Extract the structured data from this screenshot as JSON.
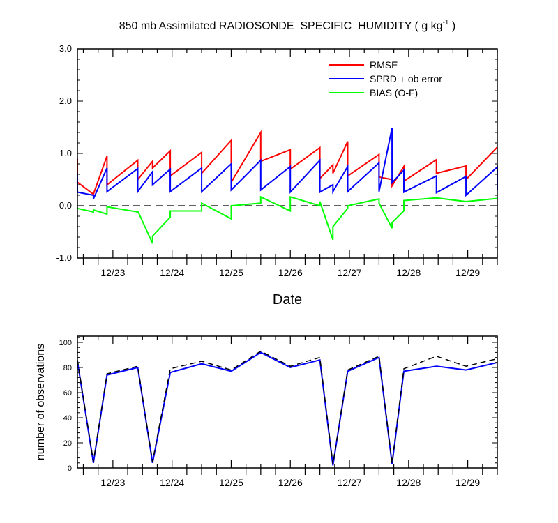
{
  "figure": {
    "title_main": "850 mb Assimilated RADIOSONDE_SPECIFIC_HUMIDITY ( g kg",
    "title_sup": "-1",
    "title_end": " )"
  },
  "chart_data": [
    {
      "type": "line",
      "xlabel": "Date",
      "ylabel": "",
      "xlim": [
        22.4,
        29.5
      ],
      "ylim": [
        -1.0,
        3.0
      ],
      "yticks": [
        -1.0,
        0.0,
        1.0,
        2.0,
        3.0
      ],
      "ytick_labels": [
        "-1.0",
        "0.0",
        "1.0",
        "2.0",
        "3.0"
      ],
      "xticks": [
        23,
        24,
        25,
        26,
        27,
        28,
        29
      ],
      "xtick_labels": [
        "12/23",
        "12/24",
        "12/25",
        "12/26",
        "12/27",
        "12/28",
        "12/29"
      ],
      "zero_line": true,
      "legend": {
        "position": "top-right"
      },
      "series": [
        {
          "name": "RMSE",
          "color": "#ff0000",
          "points": [
            [
              22.4,
              0.9
            ],
            [
              22.4,
              0.45
            ],
            [
              22.67,
              0.22
            ],
            [
              22.67,
              0.22
            ],
            [
              22.9,
              0.95
            ],
            [
              22.9,
              0.4
            ],
            [
              23.42,
              0.87
            ],
            [
              23.42,
              0.5
            ],
            [
              23.67,
              0.85
            ],
            [
              23.67,
              0.72
            ],
            [
              23.97,
              1.05
            ],
            [
              23.97,
              0.57
            ],
            [
              24.5,
              1.02
            ],
            [
              24.5,
              0.62
            ],
            [
              25.0,
              1.25
            ],
            [
              25.0,
              0.45
            ],
            [
              25.5,
              1.4
            ],
            [
              25.5,
              0.85
            ],
            [
              26.0,
              1.07
            ],
            [
              26.0,
              0.7
            ],
            [
              26.5,
              1.11
            ],
            [
              26.5,
              0.52
            ],
            [
              26.72,
              0.78
            ],
            [
              26.72,
              0.62
            ],
            [
              26.97,
              1.23
            ],
            [
              26.97,
              0.57
            ],
            [
              27.5,
              0.98
            ],
            [
              27.5,
              0.55
            ],
            [
              27.72,
              0.5
            ],
            [
              27.72,
              0.38
            ],
            [
              27.92,
              0.75
            ],
            [
              27.92,
              0.47
            ],
            [
              28.47,
              0.88
            ],
            [
              28.47,
              0.62
            ],
            [
              28.97,
              0.76
            ],
            [
              28.97,
              0.5
            ],
            [
              29.5,
              1.12
            ]
          ]
        },
        {
          "name": "SPRD + ob error",
          "color": "#0000ff",
          "points": [
            [
              22.4,
              0.62
            ],
            [
              22.4,
              0.26
            ],
            [
              22.67,
              0.2
            ],
            [
              22.67,
              0.13
            ],
            [
              22.9,
              0.72
            ],
            [
              22.9,
              0.27
            ],
            [
              23.42,
              0.71
            ],
            [
              23.42,
              0.27
            ],
            [
              23.67,
              0.65
            ],
            [
              23.67,
              0.4
            ],
            [
              23.97,
              0.7
            ],
            [
              23.97,
              0.27
            ],
            [
              24.5,
              0.72
            ],
            [
              24.5,
              0.27
            ],
            [
              25.0,
              0.8
            ],
            [
              25.0,
              0.3
            ],
            [
              25.5,
              0.87
            ],
            [
              25.5,
              0.3
            ],
            [
              26.0,
              0.75
            ],
            [
              26.0,
              0.26
            ],
            [
              26.5,
              0.87
            ],
            [
              26.5,
              0.26
            ],
            [
              26.72,
              0.4
            ],
            [
              26.72,
              0.27
            ],
            [
              26.97,
              0.75
            ],
            [
              26.97,
              0.27
            ],
            [
              27.5,
              0.82
            ],
            [
              27.5,
              0.27
            ],
            [
              27.72,
              1.49
            ],
            [
              27.72,
              0.44
            ],
            [
              27.92,
              0.68
            ],
            [
              27.92,
              0.26
            ],
            [
              28.47,
              0.57
            ],
            [
              28.47,
              0.25
            ],
            [
              28.97,
              0.56
            ],
            [
              28.97,
              0.2
            ],
            [
              29.5,
              0.74
            ],
            [
              29.5,
              0.3
            ]
          ]
        },
        {
          "name": "BIAS (O-F)",
          "color": "#00ff00",
          "points": [
            [
              22.4,
              -0.03
            ],
            [
              22.4,
              -0.05
            ],
            [
              22.67,
              -0.12
            ],
            [
              22.67,
              -0.08
            ],
            [
              22.9,
              -0.16
            ],
            [
              22.9,
              -0.02
            ],
            [
              23.42,
              -0.12
            ],
            [
              23.42,
              -0.1
            ],
            [
              23.67,
              -0.72
            ],
            [
              23.67,
              -0.58
            ],
            [
              23.97,
              -0.22
            ],
            [
              23.97,
              -0.1
            ],
            [
              24.5,
              -0.1
            ],
            [
              24.5,
              0.05
            ],
            [
              25.0,
              -0.25
            ],
            [
              25.0,
              0.0
            ],
            [
              25.5,
              0.05
            ],
            [
              25.5,
              0.17
            ],
            [
              26.0,
              -0.1
            ],
            [
              26.0,
              0.17
            ],
            [
              26.5,
              0.0
            ],
            [
              26.5,
              0.08
            ],
            [
              26.72,
              -0.65
            ],
            [
              26.72,
              -0.4
            ],
            [
              26.97,
              -0.05
            ],
            [
              26.97,
              0.0
            ],
            [
              27.5,
              0.13
            ],
            [
              27.5,
              0.05
            ],
            [
              27.72,
              -0.43
            ],
            [
              27.72,
              -0.32
            ],
            [
              27.92,
              -0.1
            ],
            [
              27.92,
              0.1
            ],
            [
              28.47,
              0.15
            ],
            [
              28.97,
              0.08
            ],
            [
              29.5,
              0.14
            ]
          ]
        }
      ]
    },
    {
      "type": "line",
      "xlabel": "",
      "ylabel": "number of observations",
      "xlim": [
        22.4,
        29.5
      ],
      "ylim": [
        0,
        105
      ],
      "yticks": [
        0,
        20,
        40,
        60,
        80,
        100
      ],
      "ytick_labels": [
        "0",
        "20",
        "40",
        "60",
        "80",
        "100"
      ],
      "xticks": [
        23,
        24,
        25,
        26,
        27,
        28,
        29
      ],
      "xtick_labels": [
        "12/23",
        "12/24",
        "12/25",
        "12/26",
        "12/27",
        "12/28",
        "12/29"
      ],
      "series": [
        {
          "color": "#0000ff",
          "style": "solid",
          "points": [
            [
              22.4,
              85
            ],
            [
              22.67,
              4
            ],
            [
              22.9,
              74
            ],
            [
              23.42,
              80
            ],
            [
              23.67,
              4
            ],
            [
              23.97,
              76
            ],
            [
              24.5,
              83
            ],
            [
              25.0,
              77
            ],
            [
              25.5,
              92
            ],
            [
              26.0,
              80
            ],
            [
              26.5,
              86
            ],
            [
              26.72,
              2
            ],
            [
              26.97,
              77
            ],
            [
              27.5,
              88
            ],
            [
              27.72,
              3
            ],
            [
              27.92,
              77
            ],
            [
              28.47,
              81
            ],
            [
              28.97,
              78
            ],
            [
              29.5,
              84
            ]
          ]
        },
        {
          "color": "#000000",
          "style": "dashed",
          "points": [
            [
              22.4,
              86
            ],
            [
              22.67,
              5
            ],
            [
              22.9,
              75
            ],
            [
              23.42,
              81
            ],
            [
              23.67,
              5
            ],
            [
              23.97,
              79
            ],
            [
              24.5,
              85
            ],
            [
              25.0,
              78
            ],
            [
              25.5,
              93
            ],
            [
              26.0,
              81
            ],
            [
              26.5,
              88
            ],
            [
              26.72,
              3
            ],
            [
              26.97,
              78
            ],
            [
              27.5,
              89
            ],
            [
              27.72,
              4
            ],
            [
              27.92,
              79
            ],
            [
              28.47,
              89
            ],
            [
              28.97,
              81
            ],
            [
              29.5,
              87
            ]
          ]
        }
      ]
    }
  ]
}
